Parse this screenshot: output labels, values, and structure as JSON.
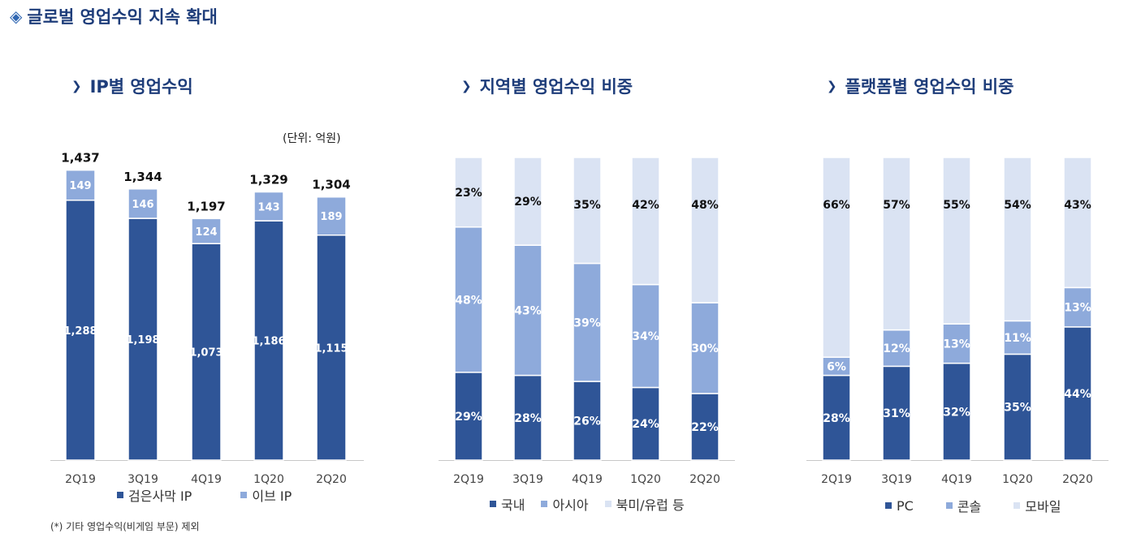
{
  "title": "글로벌 영업수익 지속 확대",
  "footnote": "(*) 기타 영업수익(비게임 부문) 제외",
  "colors": {
    "dark": "#2f5597",
    "mid": "#8eaadb",
    "light": "#dae3f3",
    "accent": "#1e3d7a"
  },
  "chart_data": [
    {
      "type": "bar",
      "title": "IP별 영업수익",
      "unit": "(단위: 억원)",
      "categories": [
        "2Q19",
        "3Q19",
        "4Q19",
        "1Q20",
        "2Q20"
      ],
      "totals": [
        "1,437",
        "1,344",
        "1,197",
        "1,329",
        "1,304"
      ],
      "ylim": [
        0,
        1500
      ],
      "series": [
        {
          "name": "검은사막 IP",
          "color": "#2f5597",
          "values": [
            1288,
            1198,
            1073,
            1186,
            1115
          ],
          "labels": [
            "1,288",
            "1,198",
            "1,073",
            "1,186",
            "1,115"
          ]
        },
        {
          "name": "이브 IP",
          "color": "#8eaadb",
          "values": [
            149,
            146,
            124,
            143,
            189
          ],
          "labels": [
            "149",
            "146",
            "124",
            "143",
            "189"
          ]
        }
      ]
    },
    {
      "type": "bar",
      "title": "지역별 영업수익 비중",
      "categories": [
        "2Q19",
        "3Q19",
        "4Q19",
        "1Q20",
        "2Q20"
      ],
      "ylim": [
        0,
        100
      ],
      "series": [
        {
          "name": "국내",
          "color": "#2f5597",
          "values": [
            29,
            28,
            26,
            24,
            22
          ],
          "labels": [
            "29%",
            "28%",
            "26%",
            "24%",
            "22%"
          ]
        },
        {
          "name": "아시아",
          "color": "#8eaadb",
          "values": [
            48,
            43,
            39,
            34,
            30
          ],
          "labels": [
            "48%",
            "43%",
            "39%",
            "34%",
            "30%"
          ]
        },
        {
          "name": "북미/유럽 등",
          "color": "#dae3f3",
          "values": [
            23,
            29,
            35,
            42,
            48
          ],
          "labels": [
            "23%",
            "29%",
            "35%",
            "42%",
            "48%"
          ]
        }
      ]
    },
    {
      "type": "bar",
      "title": "플랫폼별 영업수익 비중",
      "categories": [
        "2Q19",
        "3Q19",
        "4Q19",
        "1Q20",
        "2Q20"
      ],
      "ylim": [
        0,
        100
      ],
      "series": [
        {
          "name": "PC",
          "color": "#2f5597",
          "values": [
            28,
            31,
            32,
            35,
            44
          ],
          "labels": [
            "28%",
            "31%",
            "32%",
            "35%",
            "44%"
          ]
        },
        {
          "name": "콘솔",
          "color": "#8eaadb",
          "values": [
            6,
            12,
            13,
            11,
            13
          ],
          "labels": [
            "6%",
            "12%",
            "13%",
            "11%",
            "13%"
          ]
        },
        {
          "name": "모바일",
          "color": "#dae3f3",
          "values": [
            66,
            57,
            55,
            54,
            43
          ],
          "labels": [
            "66%",
            "57%",
            "55%",
            "54%",
            "43%"
          ]
        }
      ]
    }
  ]
}
